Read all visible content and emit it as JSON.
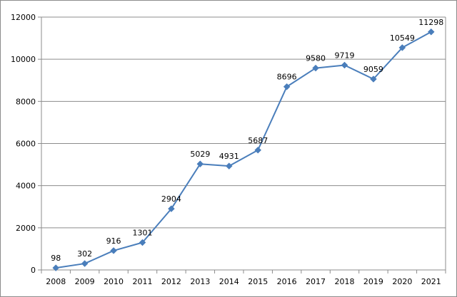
{
  "chart_data": {
    "type": "line",
    "title": "",
    "xlabel": "",
    "ylabel": "",
    "x": [
      "2008",
      "2009",
      "2010",
      "2011",
      "2012",
      "2013",
      "2014",
      "2015",
      "2016",
      "2017",
      "2018",
      "2019",
      "2020",
      "2021"
    ],
    "series": [
      {
        "values": [
          98,
          302,
          916,
          1301,
          2904,
          5029,
          4931,
          5687,
          8696,
          9580,
          9719,
          9059,
          10549,
          11298
        ],
        "color": "#4a7ebb",
        "marker": "diamond"
      }
    ],
    "data_labels": [
      "98",
      "302",
      "916",
      "1301",
      "2904",
      "5029",
      "4931",
      "5687",
      "8696",
      "9580",
      "9719",
      "9059",
      "10549",
      "11298"
    ],
    "ylim": [
      0,
      12000
    ],
    "yticks": [
      0,
      2000,
      4000,
      6000,
      8000,
      10000,
      12000
    ],
    "ytick_labels": [
      "0",
      "2000",
      "4000",
      "6000",
      "8000",
      "10000",
      "12000"
    ],
    "grid": true,
    "legend": "none"
  }
}
